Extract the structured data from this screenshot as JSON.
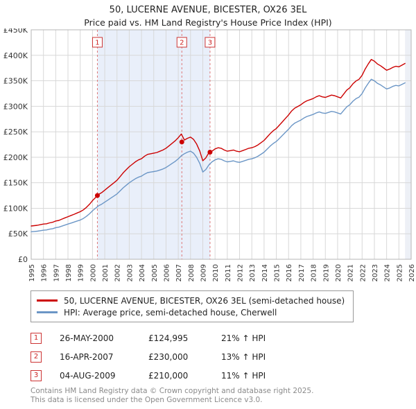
{
  "title": "50, LUCERNE AVENUE, BICESTER, OX26 3EL",
  "subtitle": "Price paid vs. HM Land Registry's House Price Index (HPI)",
  "colors": {
    "property": "#cc0000",
    "hpi": "#6b96c6",
    "band": "#e9effa",
    "future": "#edf0f6",
    "grid": "#d8d8d8",
    "border": "#b5b5b5",
    "dashed": "#dd7777",
    "marker": "#cc0000",
    "tick_text": "#333333"
  },
  "chart_data": {
    "type": "line",
    "title": "50, LUCERNE AVENUE, BICESTER, OX26 3EL — Price paid vs. HPI",
    "xlim": [
      1995,
      2026
    ],
    "ylim": [
      0,
      450000
    ],
    "x_ticks": [
      1995,
      1996,
      1997,
      1998,
      1999,
      2000,
      2001,
      2002,
      2003,
      2004,
      2005,
      2006,
      2007,
      2008,
      2009,
      2010,
      2011,
      2012,
      2013,
      2014,
      2015,
      2016,
      2017,
      2018,
      2019,
      2020,
      2021,
      2022,
      2023,
      2024,
      2025,
      2026
    ],
    "y_ticks": [
      {
        "v": 0,
        "label": "£0"
      },
      {
        "v": 50000,
        "label": "£50K"
      },
      {
        "v": 100000,
        "label": "£100K"
      },
      {
        "v": 150000,
        "label": "£150K"
      },
      {
        "v": 200000,
        "label": "£200K"
      },
      {
        "v": 250000,
        "label": "£250K"
      },
      {
        "v": 300000,
        "label": "£300K"
      },
      {
        "v": 350000,
        "label": "£350K"
      },
      {
        "v": 400000,
        "label": "£400K"
      },
      {
        "v": 450000,
        "label": "£450K"
      }
    ],
    "x": [
      1995,
      1995.25,
      1995.5,
      1995.75,
      1996,
      1996.25,
      1996.5,
      1996.75,
      1997,
      1997.25,
      1997.5,
      1997.75,
      1998,
      1998.25,
      1998.5,
      1998.75,
      1999,
      1999.25,
      1999.5,
      1999.75,
      2000,
      2000.25,
      2000.5,
      2000.75,
      2001,
      2001.25,
      2001.5,
      2001.75,
      2002,
      2002.25,
      2002.5,
      2002.75,
      2003,
      2003.25,
      2003.5,
      2003.75,
      2004,
      2004.25,
      2004.5,
      2004.75,
      2005,
      2005.25,
      2005.5,
      2005.75,
      2006,
      2006.25,
      2006.5,
      2006.75,
      2007,
      2007.25,
      2007.5,
      2007.75,
      2008,
      2008.25,
      2008.5,
      2008.75,
      2009,
      2009.25,
      2009.5,
      2009.75,
      2010,
      2010.25,
      2010.5,
      2010.75,
      2011,
      2011.25,
      2011.5,
      2011.75,
      2012,
      2012.25,
      2012.5,
      2012.75,
      2013,
      2013.25,
      2013.5,
      2013.75,
      2014,
      2014.25,
      2014.5,
      2014.75,
      2015,
      2015.25,
      2015.5,
      2015.75,
      2016,
      2016.25,
      2016.5,
      2016.75,
      2017,
      2017.25,
      2017.5,
      2017.75,
      2018,
      2018.25,
      2018.5,
      2018.75,
      2019,
      2019.25,
      2019.5,
      2019.75,
      2020,
      2020.25,
      2020.5,
      2020.75,
      2021,
      2021.25,
      2021.5,
      2021.75,
      2022,
      2022.25,
      2022.5,
      2022.75,
      2023,
      2023.25,
      2023.5,
      2023.75,
      2024,
      2024.25,
      2024.5,
      2024.75,
      2025,
      2025.25,
      2025.5
    ],
    "series": [
      {
        "name": "50, LUCERNE AVENUE, BICESTER, OX26 3EL (semi-detached house)",
        "color": "#cc0000",
        "values": [
          65300,
          65900,
          66600,
          67800,
          69000,
          69600,
          71400,
          72600,
          75000,
          76200,
          78700,
          81100,
          83500,
          85900,
          88300,
          90800,
          93200,
          96800,
          101600,
          107700,
          115000,
          121000,
          127100,
          130700,
          135500,
          140400,
          145200,
          150000,
          154900,
          162100,
          169400,
          175500,
          181500,
          186300,
          191200,
          194800,
          197200,
          202100,
          205700,
          206900,
          208100,
          209300,
          211800,
          214200,
          217800,
          222600,
          227500,
          232300,
          238400,
          245600,
          233900,
          237300,
          239600,
          235000,
          226000,
          212400,
          193200,
          198900,
          209100,
          212000,
          216500,
          218700,
          217600,
          214200,
          212000,
          213100,
          214200,
          212000,
          210900,
          213100,
          215300,
          217600,
          218700,
          220900,
          224200,
          228700,
          233100,
          239800,
          246400,
          252000,
          256400,
          263100,
          269700,
          276400,
          283100,
          290800,
          296400,
          299700,
          303000,
          307500,
          310800,
          313000,
          315200,
          318600,
          320800,
          318600,
          317500,
          319700,
          321900,
          320800,
          318600,
          316400,
          324100,
          331900,
          336300,
          344100,
          349700,
          353000,
          360800,
          373000,
          383000,
          391800,
          388500,
          383000,
          379600,
          375200,
          370700,
          373000,
          376300,
          378500,
          377400,
          380700,
          384100
        ]
      },
      {
        "name": "HPI: Average price, semi-detached house, Cherwell",
        "color": "#6b96c6",
        "values": [
          54000,
          54500,
          55000,
          56000,
          57000,
          57500,
          59000,
          60000,
          62000,
          63000,
          65000,
          67000,
          69000,
          71000,
          73000,
          75000,
          77000,
          80000,
          84000,
          89000,
          95000,
          100000,
          105000,
          108000,
          112000,
          116000,
          120000,
          124000,
          128000,
          134000,
          140000,
          145000,
          150000,
          154000,
          158000,
          161000,
          163000,
          167000,
          170000,
          171000,
          172000,
          173000,
          175000,
          177000,
          180000,
          184000,
          188000,
          192000,
          197000,
          203000,
          207000,
          210000,
          212000,
          208000,
          200000,
          188000,
          171000,
          176000,
          185000,
          191000,
          195000,
          197000,
          196000,
          193000,
          191000,
          192000,
          193000,
          191000,
          190000,
          192000,
          194000,
          196000,
          197000,
          199000,
          202000,
          206000,
          210000,
          216000,
          222000,
          227000,
          231000,
          237000,
          243000,
          249000,
          255000,
          262000,
          267000,
          270000,
          273000,
          277000,
          280000,
          282000,
          284000,
          287000,
          289000,
          287000,
          286000,
          288000,
          290000,
          289000,
          287000,
          285000,
          292000,
          299000,
          303000,
          310000,
          315000,
          318000,
          325000,
          336000,
          345000,
          353000,
          350000,
          345000,
          342000,
          338000,
          334000,
          336000,
          339000,
          341000,
          340000,
          343000,
          346000
        ]
      }
    ],
    "sales": [
      {
        "n": 1,
        "x": 2000.4,
        "date": "26-MAY-2000",
        "price": 124995,
        "price_label": "£124,995",
        "hpi_diff": "21% ↑ HPI"
      },
      {
        "n": 2,
        "x": 2007.29,
        "date": "16-APR-2007",
        "price": 230000,
        "price_label": "£230,000",
        "hpi_diff": "13% ↑ HPI"
      },
      {
        "n": 3,
        "x": 2009.59,
        "date": "04-AUG-2009",
        "price": 210000,
        "price_label": "£210,000",
        "hpi_diff": "11% ↑ HPI"
      }
    ],
    "shaded_region": {
      "from": 2000.4,
      "to": 2009.59
    },
    "future_region": {
      "from": 2025.5,
      "to": 2026
    },
    "grid": true,
    "legend_position": "bottom"
  },
  "footer": {
    "line1": "Contains HM Land Registry data © Crown copyright and database right 2025.",
    "line2": "This data is licensed under the Open Government Licence v3.0."
  }
}
